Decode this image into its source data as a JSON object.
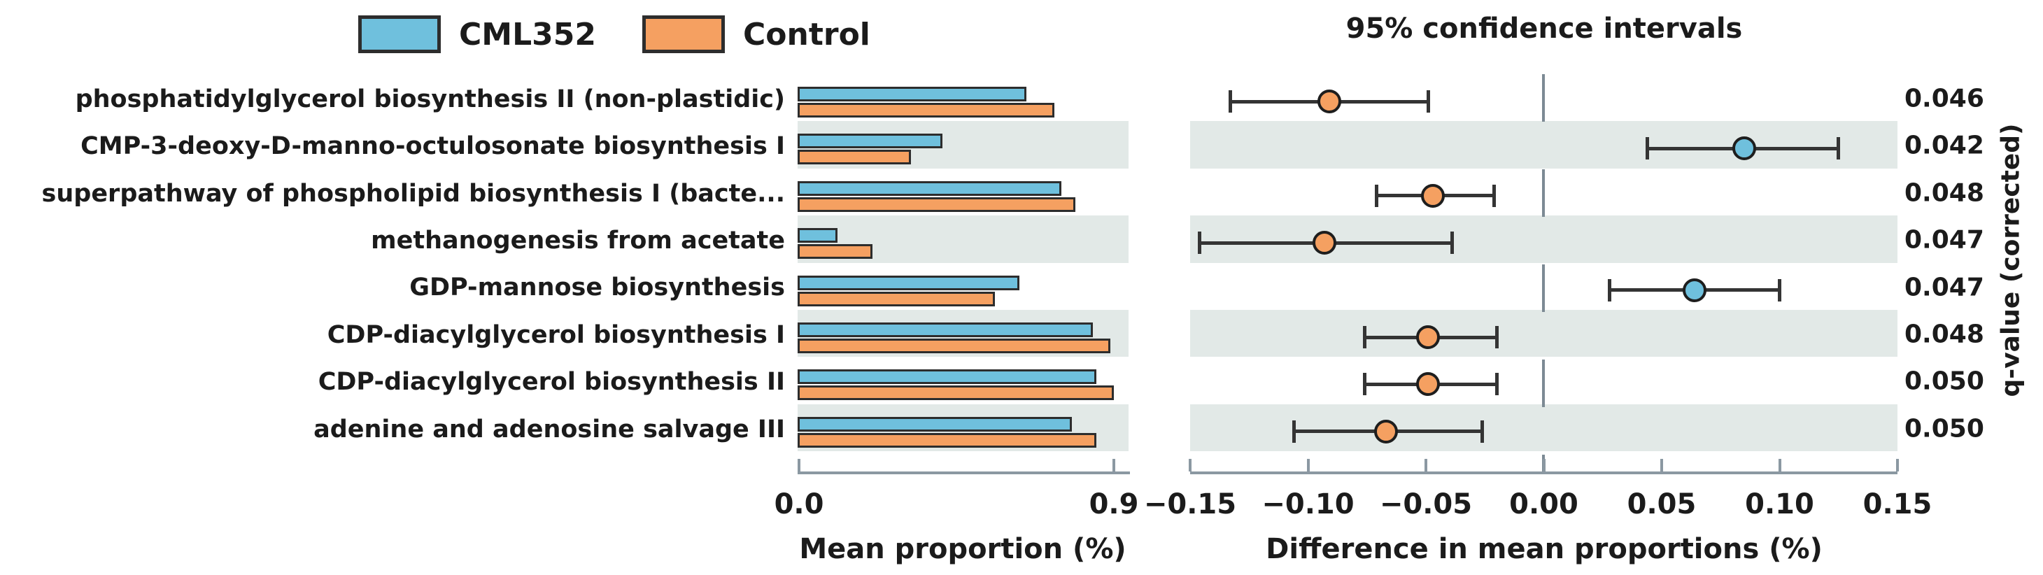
{
  "colors": {
    "cml352": "#6fc0dd",
    "control": "#f5a061",
    "bar_outline": "#2d2d2d",
    "stripe": "#e2e9e7",
    "axis": "#8b98a2",
    "zero_line": "#7c8a94",
    "error_bar": "#343434",
    "text": "#1b1b1b"
  },
  "legend": {
    "items": [
      {
        "label": "CML352",
        "color": "#6fc0dd"
      },
      {
        "label": "Control",
        "color": "#f5a061"
      }
    ]
  },
  "chart_data": {
    "type": "bar",
    "variant": "STAMP extended error bar plot (grouped horizontal bars + 95% CI of differences)",
    "categories": [
      "phosphatidylglycerol biosynthesis II (non-plastidic)",
      "CMP-3-deoxy-D-manno-octulosonate biosynthesis I",
      "superpathway of phospholipid biosynthesis I (bacte...",
      "methanogenesis from acetate",
      "GDP-mannose biosynthesis",
      "CDP-diacylglycerol biosynthesis I",
      "CDP-diacylglycerol biosynthesis II",
      "adenine and adenosine salvage III"
    ],
    "series": [
      {
        "name": "CML352",
        "color": "#6fc0dd",
        "values": [
          0.65,
          0.41,
          0.75,
          0.11,
          0.63,
          0.84,
          0.85,
          0.78
        ]
      },
      {
        "name": "Control",
        "color": "#f5a061",
        "values": [
          0.73,
          0.32,
          0.79,
          0.21,
          0.56,
          0.89,
          0.9,
          0.85
        ]
      }
    ],
    "left_axis": {
      "label": "Mean proportion (%)",
      "range": [
        0.0,
        0.9
      ],
      "ticks": [
        {
          "label": "0.0",
          "value": 0.0
        },
        {
          "label": "0.9",
          "value": 0.9
        }
      ]
    },
    "difference": {
      "title": "95% confidence intervals",
      "axis_label": "Difference in mean proportions (%)",
      "range": [
        -0.15,
        0.15
      ],
      "ticks": [
        {
          "label": "−0.15",
          "value": -0.15
        },
        {
          "label": "−0.10",
          "value": -0.1
        },
        {
          "label": "−0.05",
          "value": -0.05
        },
        {
          "label": "0.00",
          "value": 0.0
        },
        {
          "label": "0.05",
          "value": 0.05
        },
        {
          "label": "0.10",
          "value": 0.1
        },
        {
          "label": "0.15",
          "value": 0.15
        }
      ],
      "points": [
        {
          "mean": -0.091,
          "ci": [
            -0.133,
            -0.049
          ],
          "higher_in": "Control"
        },
        {
          "mean": 0.085,
          "ci": [
            0.044,
            0.125
          ],
          "higher_in": "CML352"
        },
        {
          "mean": -0.047,
          "ci": [
            -0.071,
            -0.021
          ],
          "higher_in": "Control"
        },
        {
          "mean": -0.093,
          "ci": [
            -0.146,
            -0.039
          ],
          "higher_in": "Control"
        },
        {
          "mean": 0.064,
          "ci": [
            0.028,
            0.1
          ],
          "higher_in": "CML352"
        },
        {
          "mean": -0.049,
          "ci": [
            -0.076,
            -0.02
          ],
          "higher_in": "Control"
        },
        {
          "mean": -0.049,
          "ci": [
            -0.076,
            -0.02
          ],
          "higher_in": "Control"
        },
        {
          "mean": -0.067,
          "ci": [
            -0.106,
            -0.026
          ],
          "higher_in": "Control"
        }
      ]
    },
    "q_values": {
      "label": "q-value (corrected)",
      "values": [
        "0.046",
        "0.042",
        "0.048",
        "0.047",
        "0.047",
        "0.048",
        "0.050",
        "0.050"
      ]
    }
  }
}
